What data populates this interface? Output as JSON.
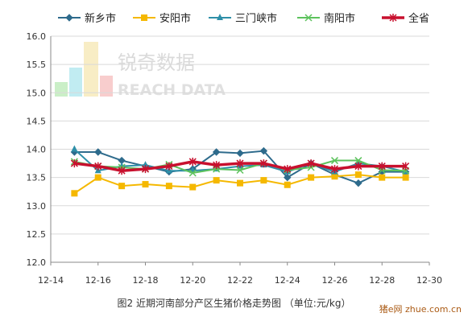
{
  "chart_data": {
    "type": "line",
    "caption": "图2  近期河南部分产区生猪价格走势图  （单位:元/kg）",
    "watermark": {
      "brand_cn": "锐奇数据",
      "brand_en": "REACH DATA"
    },
    "site_badge": {
      "brand": "猪e网",
      "domain": "zhue.com.cn"
    },
    "xticks": [
      "12-14",
      "12-16",
      "12-18",
      "12-20",
      "12-22",
      "12-24",
      "12-26",
      "12-28",
      "12-30"
    ],
    "x": [
      "12-15",
      "12-16",
      "12-17",
      "12-18",
      "12-19",
      "12-20",
      "12-21",
      "12-22",
      "12-23",
      "12-24",
      "12-25",
      "12-26",
      "12-27",
      "12-28",
      "12-29"
    ],
    "ylim": [
      12.0,
      16.0
    ],
    "yticks": [
      "12.0",
      "12.5",
      "13.0",
      "13.5",
      "14.0",
      "14.5",
      "15.0",
      "15.5",
      "16.0"
    ],
    "grid": true,
    "legend_position": "top",
    "series": [
      {
        "name": "新乡市",
        "color": "#2e6b8c",
        "marker": "diamond",
        "values": [
          13.95,
          13.95,
          13.8,
          13.7,
          13.6,
          13.65,
          13.95,
          13.93,
          13.97,
          13.5,
          13.75,
          13.55,
          13.4,
          13.6,
          13.6
        ]
      },
      {
        "name": "安阳市",
        "color": "#f5b800",
        "marker": "square",
        "values": [
          13.22,
          13.5,
          13.35,
          13.38,
          13.35,
          13.33,
          13.45,
          13.4,
          13.45,
          13.37,
          13.5,
          13.52,
          13.55,
          13.5,
          13.5
        ]
      },
      {
        "name": "三门峡市",
        "color": "#2e8fa8",
        "marker": "triangle",
        "values": [
          14.0,
          13.62,
          13.7,
          13.72,
          13.62,
          13.62,
          13.65,
          13.7,
          13.72,
          13.6,
          13.75,
          13.6,
          13.75,
          13.7,
          13.6
        ]
      },
      {
        "name": "南阳市",
        "color": "#5cc25c",
        "marker": "x",
        "values": [
          13.78,
          13.7,
          13.68,
          13.65,
          13.73,
          13.58,
          13.65,
          13.63,
          13.75,
          13.63,
          13.68,
          13.8,
          13.8,
          13.63,
          13.62
        ]
      },
      {
        "name": "全省",
        "color": "#c8102e",
        "marker": "star",
        "values": [
          13.75,
          13.7,
          13.62,
          13.65,
          13.7,
          13.78,
          13.72,
          13.75,
          13.75,
          13.65,
          13.75,
          13.65,
          13.7,
          13.7,
          13.7
        ]
      }
    ]
  }
}
